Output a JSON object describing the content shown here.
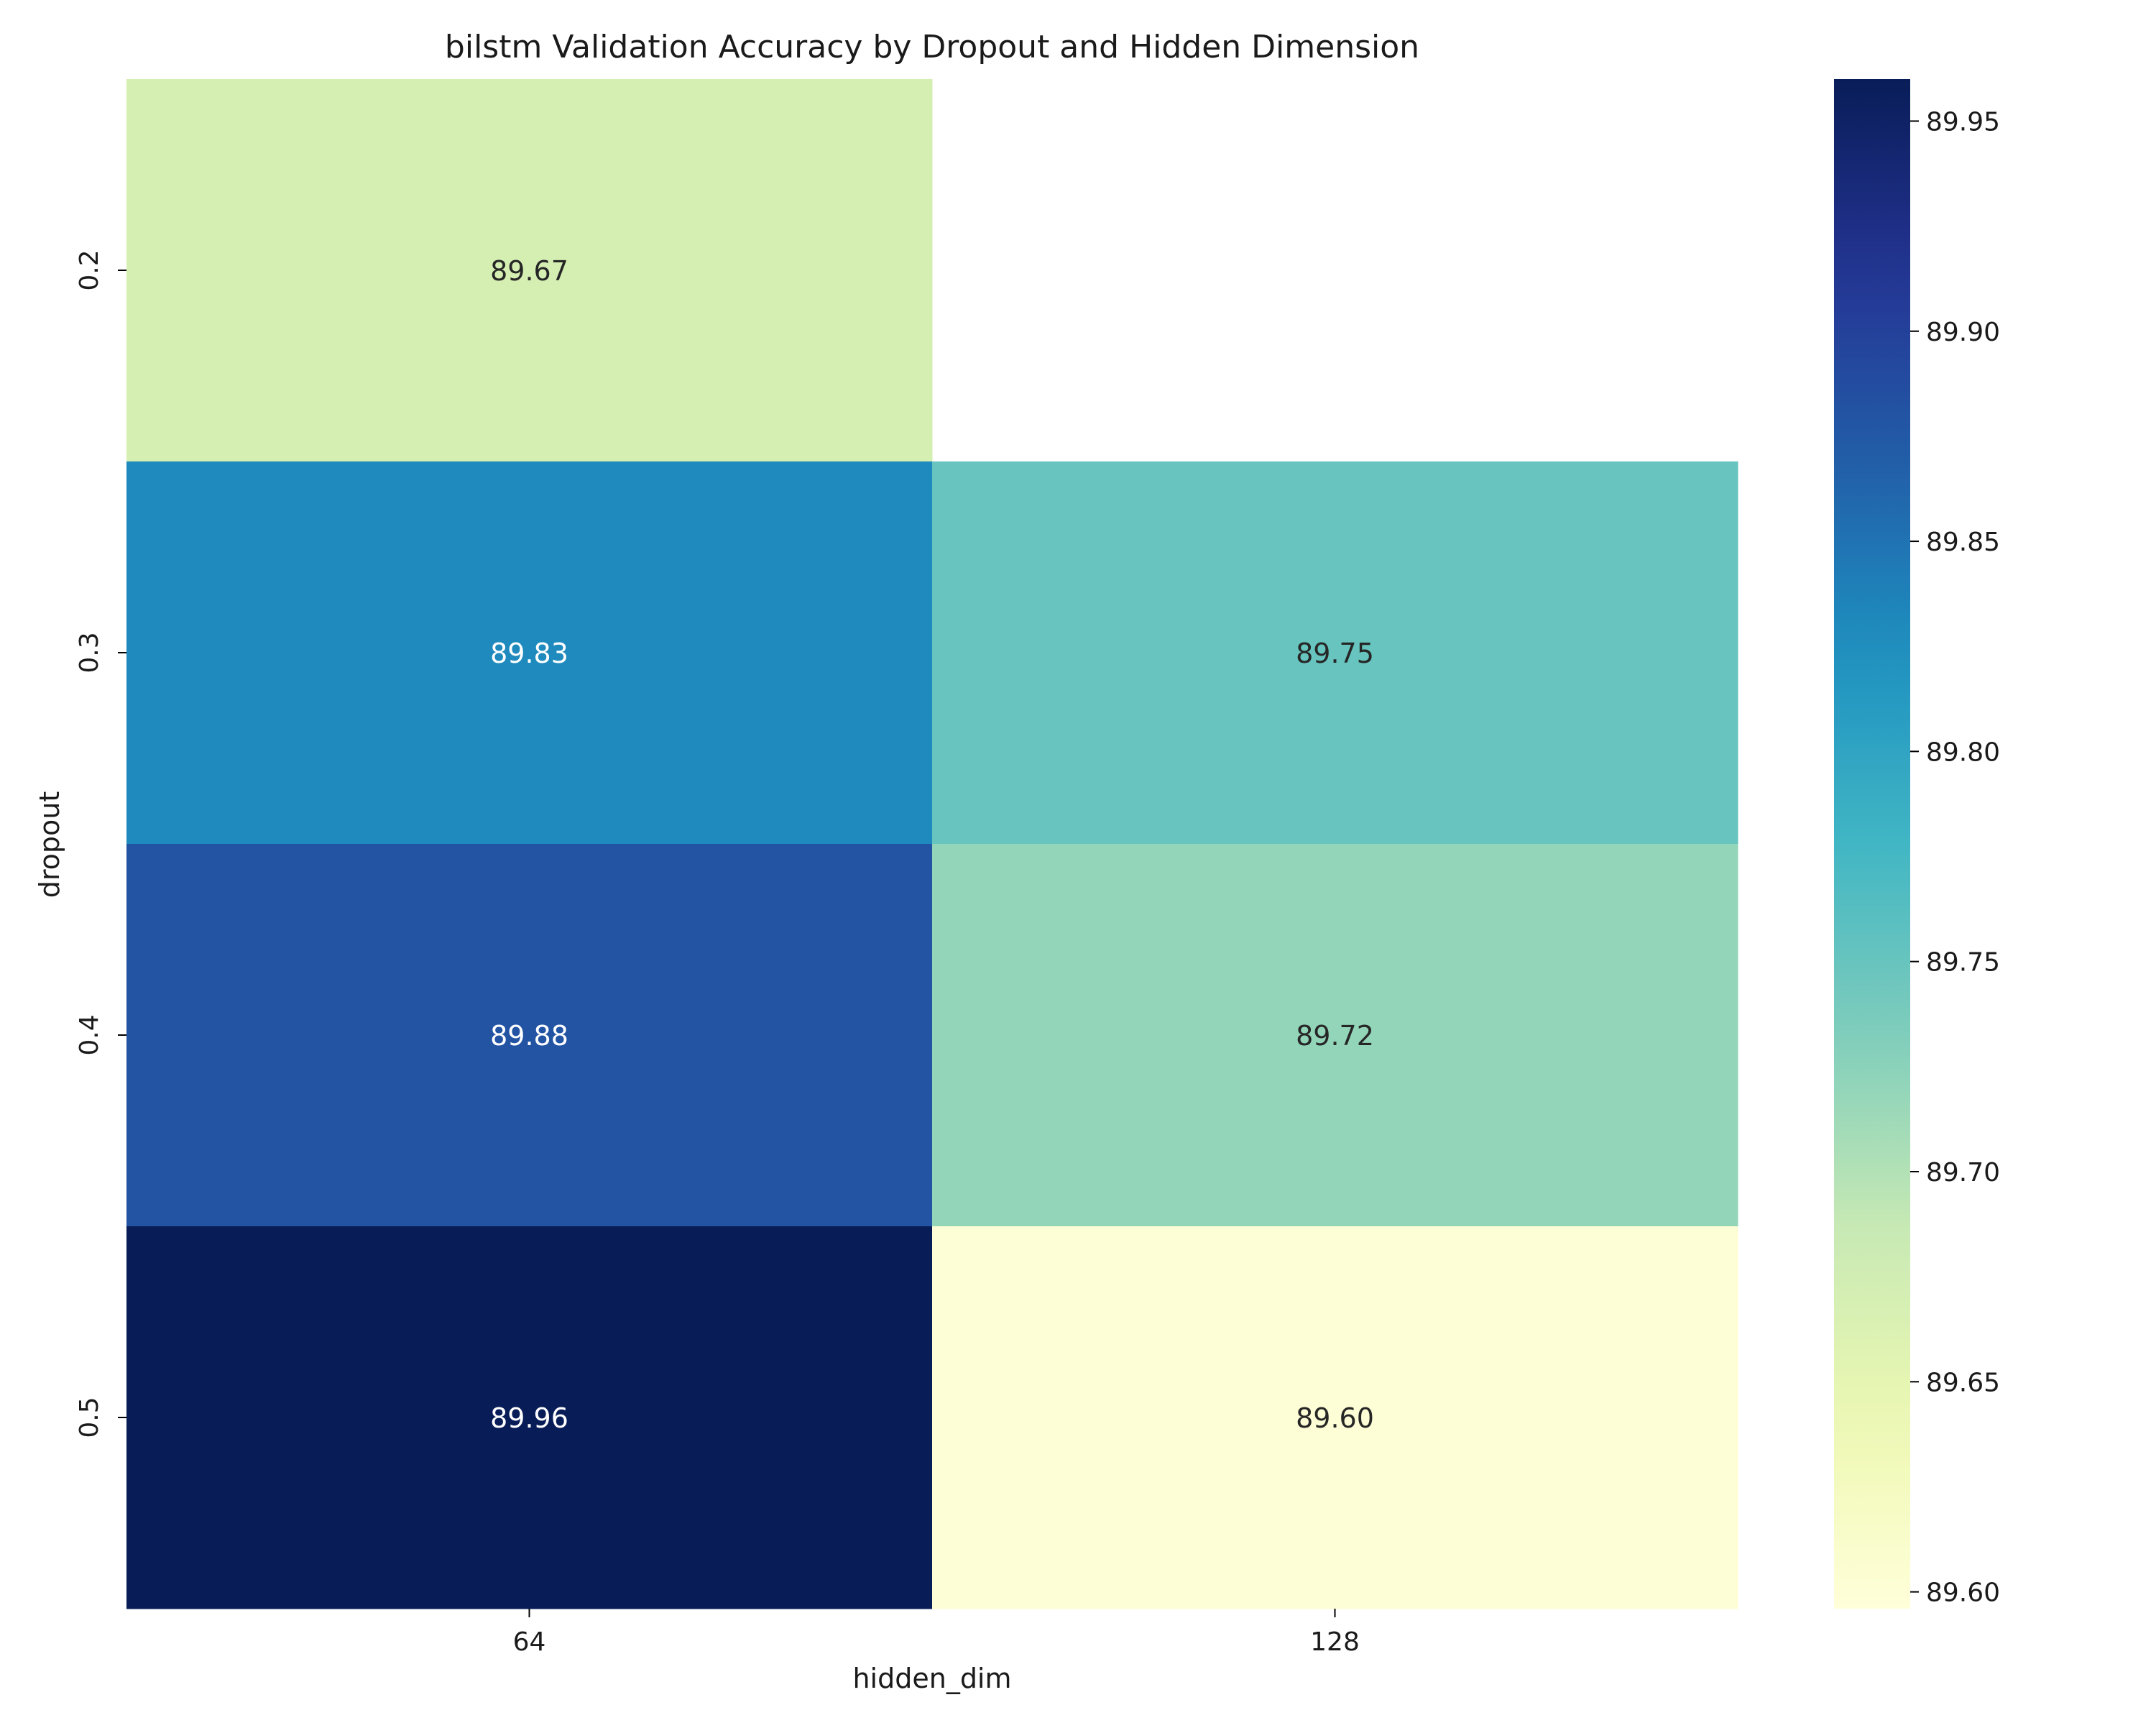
{
  "chart_data": {
    "type": "heatmap",
    "title": "bilstm Validation Accuracy by Dropout and Hidden Dimension",
    "xlabel": "hidden_dim",
    "ylabel": "dropout",
    "x_categories": [
      "64",
      "128"
    ],
    "y_categories": [
      "0.2",
      "0.3",
      "0.4",
      "0.5"
    ],
    "values": [
      [
        89.67,
        null
      ],
      [
        89.83,
        89.75
      ],
      [
        89.88,
        89.72
      ],
      [
        89.96,
        89.6
      ]
    ],
    "cell_labels": [
      [
        "89.67",
        ""
      ],
      [
        "89.83",
        "89.75"
      ],
      [
        "89.88",
        "89.72"
      ],
      [
        "89.96",
        "89.60"
      ]
    ],
    "colormap": "YlGnBu",
    "color_range": [
      89.596,
      89.96
    ],
    "colorbar_ticks": [
      "89.60",
      "89.65",
      "89.70",
      "89.75",
      "89.80",
      "89.85",
      "89.90",
      "89.95"
    ],
    "colorbar_tick_values": [
      89.6,
      89.65,
      89.7,
      89.75,
      89.8,
      89.85,
      89.9,
      89.95
    ],
    "missing_cell_color": "#ffffff"
  }
}
